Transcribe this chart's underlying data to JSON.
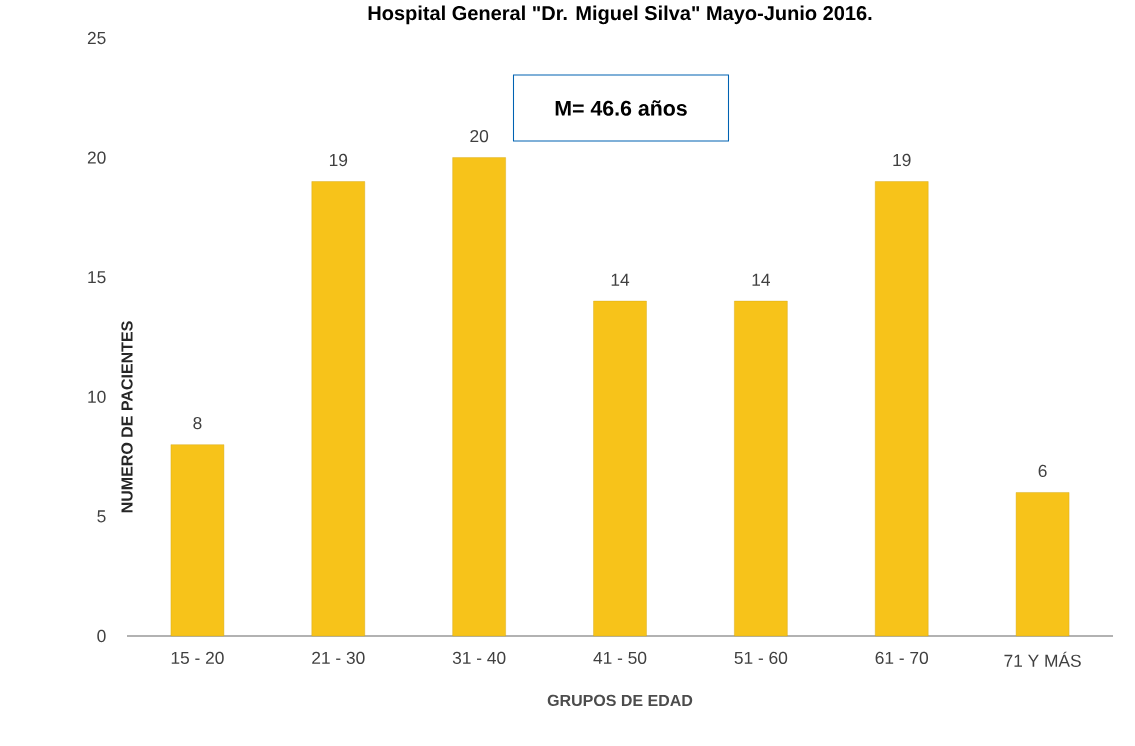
{
  "chart_data": {
    "type": "bar",
    "title": "Hospital General \"Dr. Miguel Silva\" Mayo-Junio 2016.",
    "categories": [
      "15 - 20",
      "21 - 30",
      "31 - 40",
      "41 - 50",
      "51 - 60",
      "61 - 70",
      "71 Y MÁS"
    ],
    "values": [
      8,
      19,
      20,
      14,
      14,
      19,
      6
    ],
    "color": "#f7c31a",
    "ylim": [
      0,
      25
    ],
    "yticks": [
      0,
      5,
      10,
      15,
      20,
      25
    ],
    "grid": false,
    "data_labels": true,
    "xlabel": "GRUPOS DE EDAD",
    "ylabel": "NUMERO DE PACIENTES",
    "annotations": [
      "M= 46.6 años"
    ]
  }
}
